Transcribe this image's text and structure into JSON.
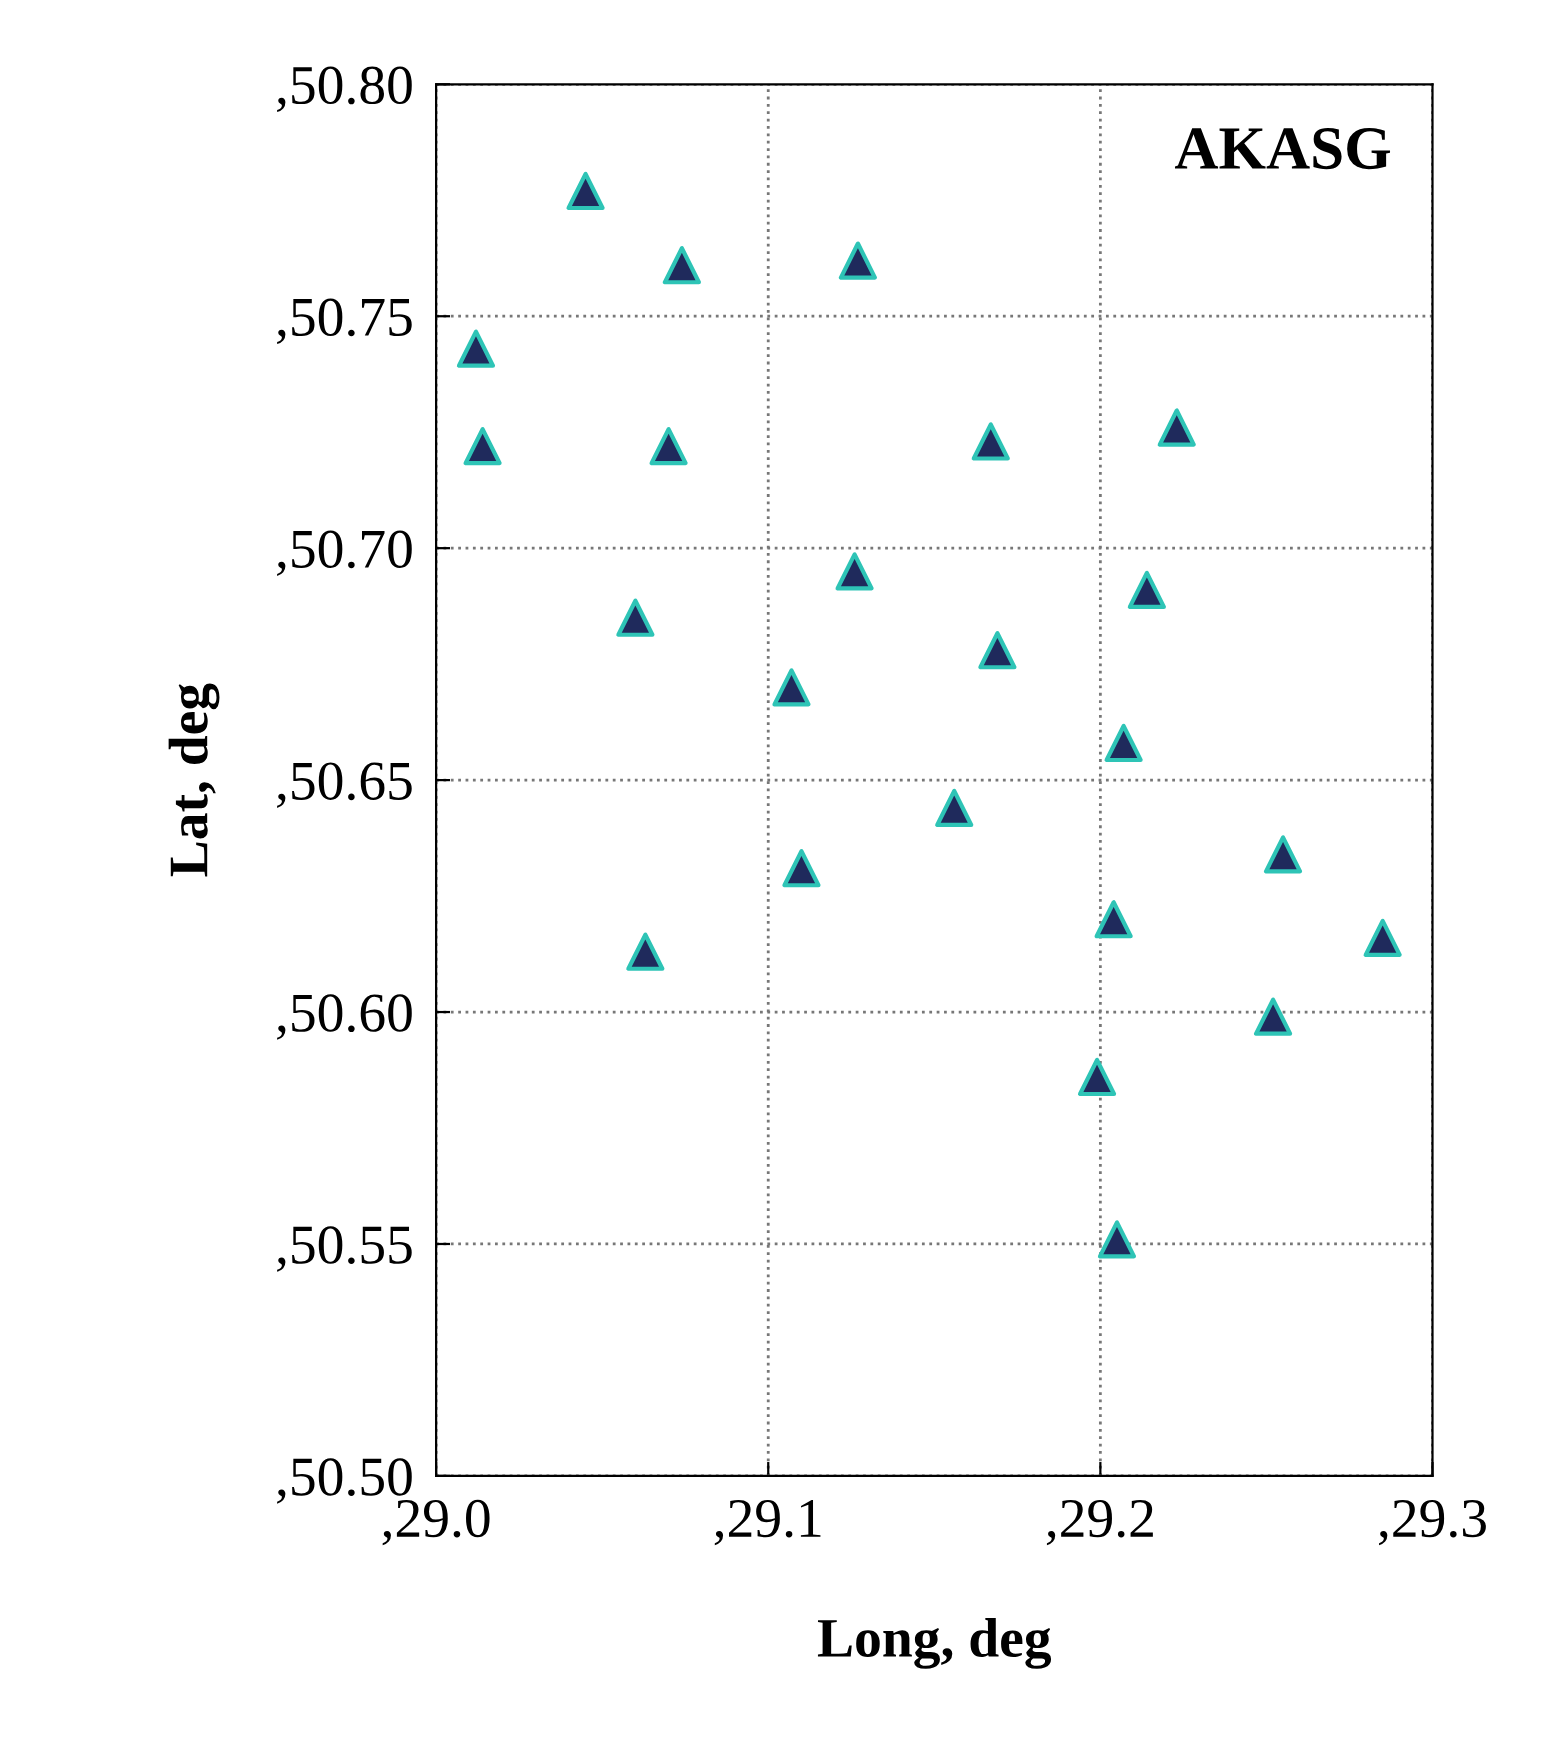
{
  "chart_data": {
    "type": "scatter",
    "title": "AKASG",
    "xlabel": "Long, deg",
    "ylabel": "Lat, deg",
    "x": [
      29.045,
      29.074,
      29.127,
      29.012,
      29.014,
      29.07,
      29.167,
      29.223,
      29.126,
      29.214,
      29.06,
      29.169,
      29.107,
      29.207,
      29.156,
      29.11,
      29.255,
      29.063,
      29.204,
      29.285,
      29.252,
      29.199,
      29.205
    ],
    "series": [
      {
        "color": "#1f2a5c",
        "values": [
          50.777,
          50.761,
          50.762,
          50.743,
          50.722,
          50.722,
          50.723,
          50.726,
          50.695,
          50.691,
          50.685,
          50.678,
          50.67,
          50.658,
          50.644,
          50.631,
          50.634,
          50.613,
          50.62,
          50.616,
          50.599,
          50.586,
          50.551
        ]
      }
    ],
    "marker": "triangle",
    "grid": true,
    "xlim": [
      29.0,
      29.3
    ],
    "ylim": [
      50.5,
      50.8
    ],
    "xticks": [
      {
        "value": 29.0,
        "label": ",29.0"
      },
      {
        "value": 29.1,
        "label": ",29.1"
      },
      {
        "value": 29.2,
        "label": ",29.2"
      },
      {
        "value": 29.3,
        "label": ",29.3"
      }
    ],
    "yticks": [
      {
        "value": 50.5,
        "label": ",50.50"
      },
      {
        "value": 50.55,
        "label": ",50.55"
      },
      {
        "value": 50.6,
        "label": ",50.60"
      },
      {
        "value": 50.65,
        "label": ",50.65"
      },
      {
        "value": 50.7,
        "label": ",50.70"
      },
      {
        "value": 50.75,
        "label": ",50.75"
      },
      {
        "value": 50.8,
        "label": ",50.80"
      }
    ]
  }
}
